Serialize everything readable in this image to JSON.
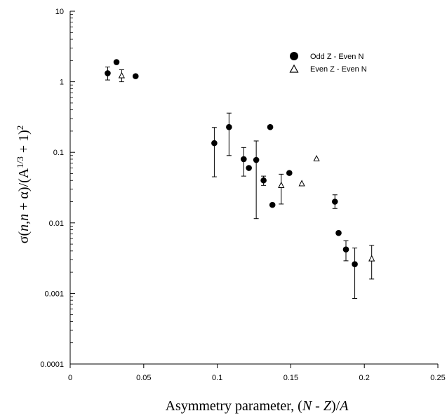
{
  "chart_data": {
    "type": "scatter",
    "xlabel": "Asymmetry parameter, (N - Z)/A",
    "ylabel": "σ(n,n + α)/(A^1/3 + 1)^2",
    "xlim": [
      0,
      0.25
    ],
    "ylim": [
      0.0001,
      10
    ],
    "y_scale": "log",
    "x_ticks": [
      0,
      0.05,
      0.1,
      0.15,
      0.2,
      0.25
    ],
    "x_tick_labels": [
      "0",
      "0.05",
      "0.1",
      "0.15",
      "0.2",
      "0.25"
    ],
    "y_ticks": [
      0.0001,
      0.001,
      0.01,
      0.1,
      1,
      10
    ],
    "y_tick_labels": [
      "0.0001",
      "0.001",
      "0.01",
      "0.1",
      "1",
      "10"
    ],
    "grid": false,
    "legend_position": "top-right",
    "series": [
      {
        "name": "Odd Z - Even N",
        "marker": "filled-circle",
        "points": [
          {
            "x": 0.0255,
            "y": 1.32,
            "err": [
              1.06,
              1.62
            ]
          },
          {
            "x": 0.0315,
            "y": 1.9
          },
          {
            "x": 0.0445,
            "y": 1.2
          },
          {
            "x": 0.098,
            "y": 0.135,
            "err": [
              0.045,
              0.225
            ]
          },
          {
            "x": 0.108,
            "y": 0.228,
            "err": [
              0.09,
              0.36
            ]
          },
          {
            "x": 0.118,
            "y": 0.08,
            "err": [
              0.046,
              0.117
            ]
          },
          {
            "x": 0.1215,
            "y": 0.06
          },
          {
            "x": 0.1265,
            "y": 0.078,
            "err": [
              0.0115,
              0.145
            ]
          },
          {
            "x": 0.1315,
            "y": 0.04,
            "err": [
              0.034,
              0.046
            ]
          },
          {
            "x": 0.136,
            "y": 0.228
          },
          {
            "x": 0.1375,
            "y": 0.018
          },
          {
            "x": 0.149,
            "y": 0.051
          },
          {
            "x": 0.18,
            "y": 0.02,
            "err": [
              0.016,
              0.025
            ]
          },
          {
            "x": 0.1825,
            "y": 0.0072
          },
          {
            "x": 0.1875,
            "y": 0.0042,
            "err": [
              0.0029,
              0.0056
            ]
          },
          {
            "x": 0.1935,
            "y": 0.0026,
            "err": [
              0.00085,
              0.0044
            ]
          }
        ]
      },
      {
        "name": "Even Z - Even N",
        "marker": "open-triangle",
        "points": [
          {
            "x": 0.035,
            "y": 1.22,
            "err": [
              1.0,
              1.48
            ]
          },
          {
            "x": 0.1435,
            "y": 0.034,
            "err": [
              0.0185,
              0.049
            ]
          },
          {
            "x": 0.1575,
            "y": 0.036
          },
          {
            "x": 0.1675,
            "y": 0.081
          },
          {
            "x": 0.205,
            "y": 0.0031,
            "err": [
              0.0016,
              0.0048
            ]
          }
        ]
      }
    ]
  }
}
